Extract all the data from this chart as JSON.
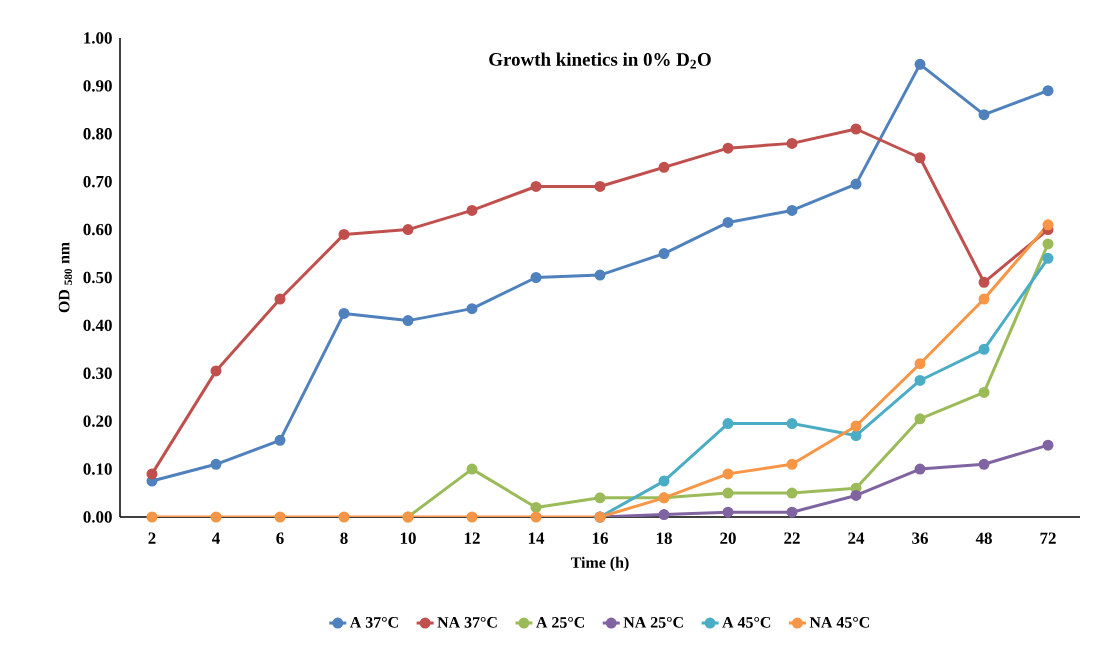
{
  "chart_data": {
    "type": "line",
    "title": "Growth kinetics in 0% D$_{2}$O",
    "xlabel": "Time (h)",
    "ylabel": "OD $_{580}$ nm",
    "categories": [
      "2",
      "4",
      "6",
      "8",
      "10",
      "12",
      "14",
      "16",
      "18",
      "20",
      "22",
      "24",
      "36",
      "48",
      "72"
    ],
    "series": [
      {
        "name": "A 37°C",
        "color": "#4f81bd",
        "values": [
          0.075,
          0.11,
          0.16,
          0.425,
          0.41,
          0.435,
          0.5,
          0.505,
          0.55,
          0.615,
          0.64,
          0.695,
          0.945,
          0.84,
          0.89
        ]
      },
      {
        "name": "NA 37°C",
        "color": "#c0504d",
        "values": [
          0.09,
          0.305,
          0.455,
          0.59,
          0.6,
          0.64,
          0.69,
          0.69,
          0.73,
          0.77,
          0.78,
          0.81,
          0.75,
          0.49,
          0.6
        ]
      },
      {
        "name": "A 25°C",
        "color": "#9bbb59",
        "values": [
          null,
          null,
          null,
          null,
          0,
          0.1,
          0.02,
          0.04,
          0.04,
          0.05,
          0.05,
          0.06,
          0.205,
          0.26,
          0.57
        ]
      },
      {
        "name": "NA 25°C",
        "color": "#8064a2",
        "values": [
          null,
          null,
          null,
          null,
          null,
          null,
          null,
          0,
          0.005,
          0.01,
          0.01,
          0.045,
          0.1,
          0.11,
          0.15
        ]
      },
      {
        "name": "A 45°C",
        "color": "#4bacc6",
        "values": [
          null,
          null,
          null,
          null,
          null,
          null,
          null,
          0,
          0.075,
          0.195,
          0.195,
          0.17,
          0.285,
          0.35,
          0.54
        ]
      },
      {
        "name": "NA 45°C",
        "color": "#f79646",
        "values": [
          0,
          0,
          0,
          0,
          0,
          0,
          0,
          0,
          0.04,
          0.09,
          0.11,
          0.19,
          0.32,
          0.455,
          0.61
        ]
      }
    ],
    "ylim": [
      0,
      1
    ],
    "yticks": [
      {
        "value": 0,
        "label": "0.00"
      },
      {
        "value": 0.1,
        "label": "0.10"
      },
      {
        "value": 0.2,
        "label": "0.20"
      },
      {
        "value": 0.3,
        "label": "0.30"
      },
      {
        "value": 0.4,
        "label": "0.40"
      },
      {
        "value": 0.5,
        "label": "0.50"
      },
      {
        "value": 0.6,
        "label": "0.60"
      },
      {
        "value": 0.7,
        "label": "0.70"
      },
      {
        "value": 0.8,
        "label": "0.80"
      },
      {
        "value": 0.9,
        "label": "0.90"
      },
      {
        "value": 1,
        "label": "1.00"
      }
    ],
    "legend": "bottom",
    "marker": "circle"
  }
}
